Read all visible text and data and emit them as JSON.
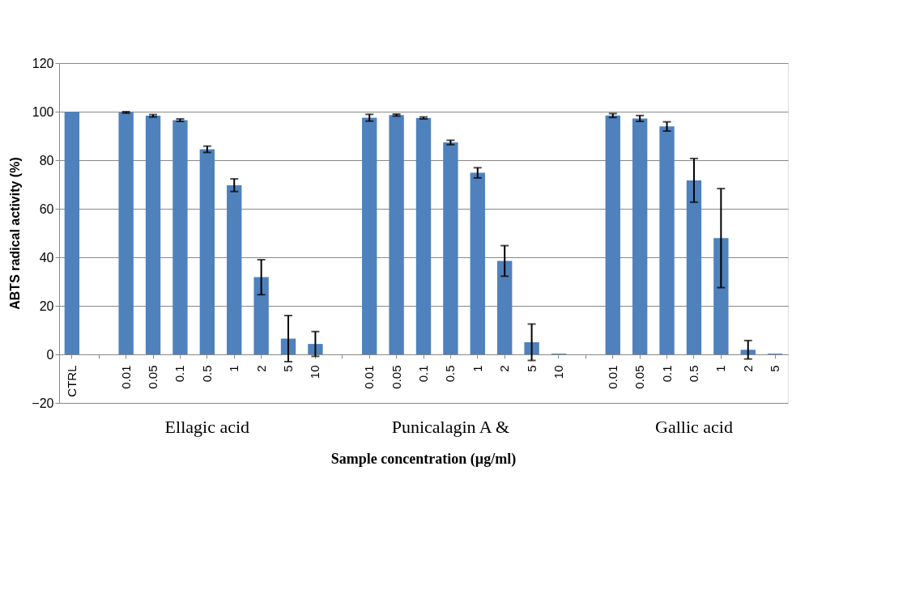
{
  "chart_data": {
    "type": "bar",
    "xlabel": "Sample concentration (µg/ml)",
    "ylabel": "ABTS radical activity (%)",
    "categories": [
      "CTRL",
      null,
      "0.01",
      "0.05",
      "0.1",
      "0.5",
      "1",
      "2",
      "5",
      "10",
      null,
      "0.01",
      "0.05",
      "0.1",
      "0.5",
      "1",
      "2",
      "5",
      "10",
      null,
      "0.01",
      "0.05",
      "0.1",
      "0.5",
      "1",
      "2",
      "5"
    ],
    "values": [
      100,
      null,
      99.7,
      98.3,
      96.5,
      84.5,
      69.7,
      31.8,
      6.5,
      4.3,
      null,
      97.5,
      98.6,
      97.4,
      87.3,
      74.8,
      38.5,
      5,
      0.3,
      null,
      98.4,
      97.2,
      93.9,
      71.7,
      47.9,
      1.9,
      0.3
    ],
    "errors": [
      null,
      null,
      0.3,
      0.5,
      0.5,
      1.3,
      2.6,
      7.2,
      9.5,
      5.1,
      null,
      1.4,
      0.4,
      0.4,
      0.9,
      2.1,
      6.3,
      7.5,
      null,
      null,
      0.8,
      1.2,
      1.9,
      9,
      20.4,
      3.8,
      null
    ],
    "color": "#4f81bd",
    "annotations": [
      "Ellagic acid",
      "Punicalagin A &",
      "Gallic acid"
    ],
    "ylim": [
      -20,
      120
    ],
    "yticks": [
      -20,
      0,
      20,
      40,
      60,
      80,
      100,
      120
    ],
    "grid": "y"
  }
}
